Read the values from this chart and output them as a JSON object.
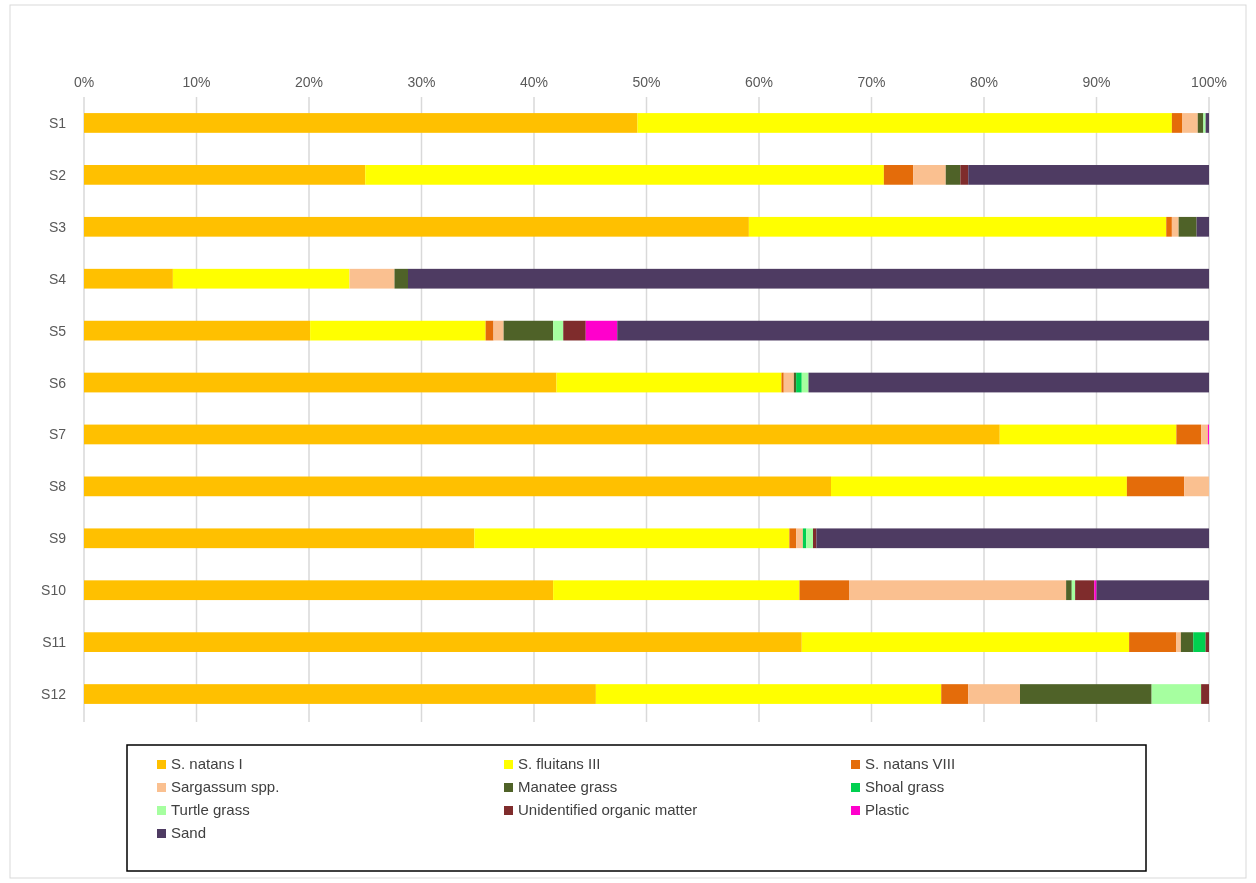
{
  "chart_data": {
    "type": "bar",
    "orientation": "horizontal",
    "stacked": true,
    "categories": [
      "S1",
      "S2",
      "S3",
      "S4",
      "S5",
      "S6",
      "S7",
      "S8",
      "S9",
      "S10",
      "S11",
      "S12"
    ],
    "xlim": [
      0,
      100
    ],
    "xticks": [
      {
        "value": 0,
        "label": "0%"
      },
      {
        "value": 10,
        "label": "10%"
      },
      {
        "value": 20,
        "label": "20%"
      },
      {
        "value": 30,
        "label": "30%"
      },
      {
        "value": 40,
        "label": "40%"
      },
      {
        "value": 50,
        "label": "50%"
      },
      {
        "value": 60,
        "label": "60%"
      },
      {
        "value": 70,
        "label": "70%"
      },
      {
        "value": 80,
        "label": "80%"
      },
      {
        "value": 90,
        "label": "90%"
      },
      {
        "value": 100,
        "label": "100%"
      }
    ],
    "grid": "x",
    "legend": "bottom",
    "series": [
      {
        "name": "S. natans I",
        "color": "#ffc000",
        "values": [
          49.2,
          25.0,
          59.1,
          7.9,
          20.1,
          42.0,
          81.4,
          66.4,
          34.7,
          41.7,
          63.8,
          45.5
        ]
      },
      {
        "name": "S. fluitans III",
        "color": "#ffff00",
        "values": [
          47.5,
          46.1,
          37.1,
          15.7,
          15.6,
          20.0,
          15.7,
          26.3,
          28.0,
          21.9,
          29.1,
          30.7
        ]
      },
      {
        "name": "S. natans VIII",
        "color": "#e46c0a",
        "values": [
          0.9,
          2.6,
          0.5,
          0,
          0.7,
          0.2,
          2.2,
          5.1,
          0.6,
          4.4,
          4.2,
          2.4
        ]
      },
      {
        "name": "Sargassum spp.",
        "color": "#fac090",
        "values": [
          1.4,
          2.9,
          0.6,
          4.0,
          0.9,
          0.9,
          0.6,
          2.2,
          0.6,
          19.3,
          0.4,
          4.6
        ]
      },
      {
        "name": "Manatee grass",
        "color": "#4f6228",
        "values": [
          0.5,
          1.3,
          1.6,
          1.2,
          4.4,
          0.2,
          0,
          0,
          0,
          0.5,
          1.1,
          11.7
        ]
      },
      {
        "name": "Shoal grass",
        "color": "#00d050",
        "values": [
          0,
          0,
          0,
          0,
          0,
          0.5,
          0,
          0,
          0.3,
          0,
          1.1,
          0
        ]
      },
      {
        "name": "Turtle grass",
        "color": "#a6ffa0",
        "values": [
          0.2,
          0,
          0,
          0,
          0.9,
          0.6,
          0,
          0,
          0.6,
          0.3,
          0,
          4.4
        ]
      },
      {
        "name": "Unidentified organic matter",
        "color": "#7f2c2c",
        "values": [
          0,
          0.7,
          0,
          0,
          2.0,
          0,
          0,
          0,
          0.3,
          1.7,
          0.3,
          0.7
        ]
      },
      {
        "name": "Plastic",
        "color": "#ff00cc",
        "values": [
          0,
          0,
          0,
          0,
          2.8,
          0,
          0.1,
          0,
          0,
          0.2,
          0,
          0
        ]
      },
      {
        "name": "Sand",
        "color": "#4e3b62",
        "values": [
          0.3,
          21.4,
          1.1,
          71.2,
          52.6,
          35.6,
          0,
          0,
          34.9,
          10.0,
          0,
          0
        ]
      }
    ]
  }
}
